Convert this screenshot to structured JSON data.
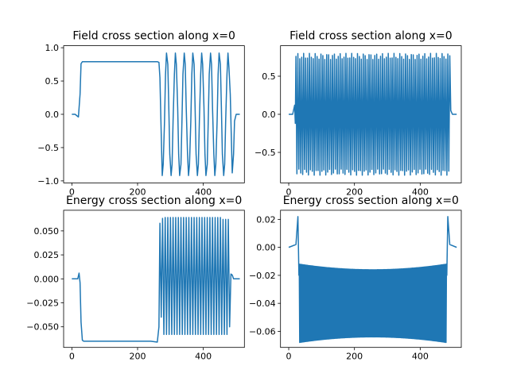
{
  "figure": {
    "background": "#ffffff",
    "line_color": "#1f77b4"
  },
  "chart_data": [
    {
      "type": "line",
      "title": "Field cross section along x=0",
      "xlabel": "",
      "ylabel": "",
      "xlim": [
        -25,
        525
      ],
      "ylim": [
        -1.03,
        1.03
      ],
      "xticks": [
        0,
        200,
        400
      ],
      "yticks": [
        -1.0,
        -0.5,
        0.0,
        0.5,
        1.0
      ],
      "ytick_labels": [
        "−1.0",
        "−0.5",
        "0.0",
        "0.5",
        "1.0"
      ],
      "grid": false,
      "legend": "none",
      "series": [
        {
          "x": [
            0,
            10,
            20,
            25,
            28,
            32,
            40,
            60,
            100,
            150,
            200,
            240,
            260,
            265,
            268,
            271,
            275,
            278,
            282,
            285,
            288,
            292,
            295,
            298,
            302,
            305,
            308,
            312,
            315,
            318,
            322,
            325,
            328,
            332,
            335,
            338,
            342,
            345,
            348,
            352,
            355,
            358,
            362,
            365,
            368,
            372,
            375,
            378,
            382,
            385,
            388,
            392,
            395,
            398,
            402,
            405,
            408,
            412,
            415,
            418,
            422,
            425,
            428,
            432,
            435,
            438,
            442,
            445,
            448,
            452,
            455,
            458,
            462,
            465,
            468,
            472,
            475,
            478,
            482,
            485,
            488,
            492,
            495,
            500,
            505,
            511
          ],
          "y": [
            0,
            0,
            -0.04,
            0.3,
            0.76,
            0.79,
            0.79,
            0.79,
            0.79,
            0.79,
            0.79,
            0.79,
            0.79,
            0.78,
            0.55,
            -0.1,
            -0.92,
            -0.75,
            -0.1,
            0.6,
            0.92,
            0.75,
            0.1,
            -0.6,
            -0.92,
            -0.75,
            -0.1,
            0.6,
            0.92,
            0.75,
            0.1,
            -0.6,
            -0.92,
            -0.75,
            -0.1,
            0.6,
            0.92,
            0.75,
            0.1,
            -0.6,
            -0.92,
            -0.75,
            -0.1,
            0.6,
            0.92,
            0.75,
            0.1,
            -0.6,
            -0.92,
            -0.75,
            -0.1,
            0.6,
            0.92,
            0.75,
            0.1,
            -0.6,
            -0.92,
            -0.75,
            -0.1,
            0.6,
            0.92,
            0.75,
            0.1,
            -0.6,
            -0.92,
            -0.75,
            -0.1,
            0.6,
            0.92,
            0.75,
            0.1,
            -0.6,
            -0.92,
            -0.75,
            -0.1,
            0.6,
            0.92,
            0.7,
            0.3,
            -0.3,
            -0.88,
            -0.6,
            -0.1,
            0.0,
            0.0,
            0.0
          ]
        }
      ]
    },
    {
      "type": "line",
      "title": "Field cross section along x=0",
      "xlabel": "",
      "ylabel": "",
      "xlim": [
        -25,
        525
      ],
      "ylim": [
        -0.9,
        0.9
      ],
      "xticks": [
        0,
        200,
        400
      ],
      "yticks": [
        -0.5,
        0.0,
        0.5
      ],
      "ytick_labels": [
        "−0.5",
        "0.0",
        "0.5"
      ],
      "grid": false,
      "legend": "none",
      "series": [
        {
          "oscillation": {
            "x_start": 0,
            "x_end": 511,
            "core_start": 22,
            "core_end": 490,
            "cycles": 80,
            "amp_max": 0.8,
            "amp_min": -0.8,
            "lead_in_amp": 0.12
          }
        }
      ]
    },
    {
      "type": "line",
      "title": "Energy cross section along x=0",
      "xlabel": "",
      "ylabel": "",
      "xlim": [
        -25,
        525
      ],
      "ylim": [
        -0.0715,
        0.0715
      ],
      "xticks": [
        0,
        200,
        400
      ],
      "yticks": [
        -0.05,
        -0.025,
        0.0,
        0.025,
        0.05
      ],
      "ytick_labels": [
        "−0.050",
        "−0.025",
        "0.000",
        "0.025",
        "0.050"
      ],
      "grid": false,
      "legend": "none",
      "series": [
        {
          "x": [
            0,
            10,
            18,
            22,
            25,
            28,
            32,
            36,
            40,
            60,
            100,
            150,
            200,
            240,
            260,
            265,
            268,
            272,
            276,
            280,
            284,
            288,
            292,
            296,
            300,
            304,
            308,
            312,
            316,
            320,
            324,
            328,
            332,
            336,
            340,
            344,
            348,
            352,
            356,
            360,
            364,
            368,
            372,
            376,
            380,
            384,
            388,
            392,
            396,
            400,
            404,
            408,
            412,
            416,
            420,
            424,
            428,
            432,
            436,
            440,
            444,
            448,
            452,
            456,
            460,
            464,
            468,
            472,
            476,
            480,
            484,
            488,
            492,
            496,
            500,
            511
          ],
          "y": [
            0,
            0,
            0.0,
            0.006,
            -0.004,
            -0.045,
            -0.064,
            -0.065,
            -0.065,
            -0.065,
            -0.065,
            -0.065,
            -0.065,
            -0.065,
            -0.066,
            -0.05,
            0.058,
            -0.04,
            0.063,
            -0.058,
            0.064,
            -0.058,
            0.064,
            -0.058,
            0.064,
            -0.058,
            0.064,
            -0.058,
            0.064,
            -0.058,
            0.064,
            -0.058,
            0.064,
            -0.058,
            0.064,
            -0.058,
            0.064,
            -0.058,
            0.064,
            -0.058,
            0.064,
            -0.058,
            0.064,
            -0.058,
            0.064,
            -0.058,
            0.064,
            -0.058,
            0.064,
            -0.058,
            0.064,
            -0.058,
            0.064,
            -0.058,
            0.064,
            -0.058,
            0.064,
            -0.058,
            0.064,
            -0.058,
            0.064,
            -0.058,
            0.064,
            -0.058,
            0.062,
            -0.058,
            0.062,
            -0.058,
            0.062,
            -0.05,
            0.005,
            0.004,
            0.0,
            0.0,
            0.0,
            0.0
          ]
        }
      ]
    },
    {
      "type": "line",
      "title": "Energy cross section along x=0",
      "xlabel": "",
      "ylabel": "",
      "xlim": [
        -25,
        525
      ],
      "ylim": [
        -0.0715,
        0.0265
      ],
      "xticks": [
        0,
        200,
        400
      ],
      "yticks": [
        -0.06,
        -0.04,
        -0.02,
        0.0,
        0.02
      ],
      "ytick_labels": [
        "−0.06",
        "−0.04",
        "−0.02",
        "0.00",
        "0.02"
      ],
      "grid": false,
      "legend": "none",
      "series": [
        {
          "band": {
            "x_start": 0,
            "x_end": 511,
            "spike_left_x": 28,
            "spike_right_x": 484,
            "spike_y": 0.022,
            "band_start": 32,
            "band_end": 480,
            "band_top_edge": -0.012,
            "band_top_mid": -0.016,
            "band_bottom_edge": -0.068,
            "band_bottom_mid": -0.064,
            "cycles": 160
          }
        }
      ]
    }
  ]
}
